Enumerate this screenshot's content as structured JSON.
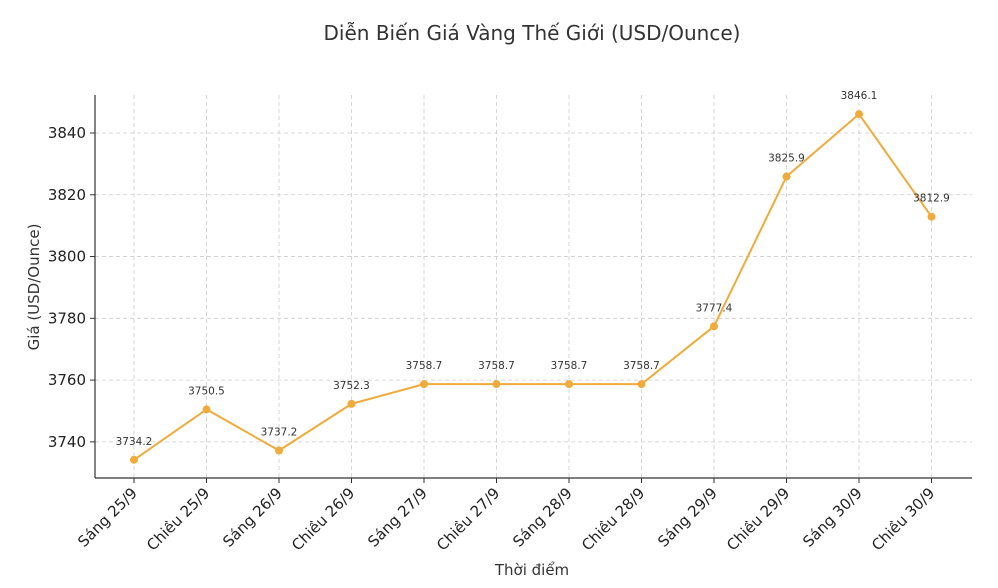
{
  "chart_data": {
    "type": "line",
    "title": "Diễn Biến Giá Vàng Thế Giới (USD/Ounce)",
    "xlabel": "Thời điểm",
    "ylabel": "Giá (USD/Ounce)",
    "categories": [
      "Sáng 25/9",
      "Chiều 25/9",
      "Sáng 26/9",
      "Chiều 26/9",
      "Sáng 27/9",
      "Chiều 27/9",
      "Sáng 28/9",
      "Chiều 28/9",
      "Sáng 29/9",
      "Chiều 29/9",
      "Sáng 30/9",
      "Chiều 30/9"
    ],
    "series": [
      {
        "values": [
          3734.2,
          3750.5,
          3737.2,
          3752.3,
          3758.7,
          3758.7,
          3758.7,
          3758.7,
          3777.4,
          3825.9,
          3846.1,
          3812.9
        ],
        "data_labels": [
          "3734.2",
          "3750.5",
          "3737.2",
          "3752.3",
          "3758.7",
          "3758.7",
          "3758.7",
          "3758.7",
          "3777.4",
          "3825.9",
          "3846.1",
          "3812.9"
        ],
        "color": "#F0AB3C"
      }
    ],
    "yticks": [
      3740,
      3760,
      3780,
      3800,
      3820,
      3840
    ],
    "ylim": [
      3728.3,
      3852.3
    ],
    "grid": true,
    "legend": "none"
  }
}
